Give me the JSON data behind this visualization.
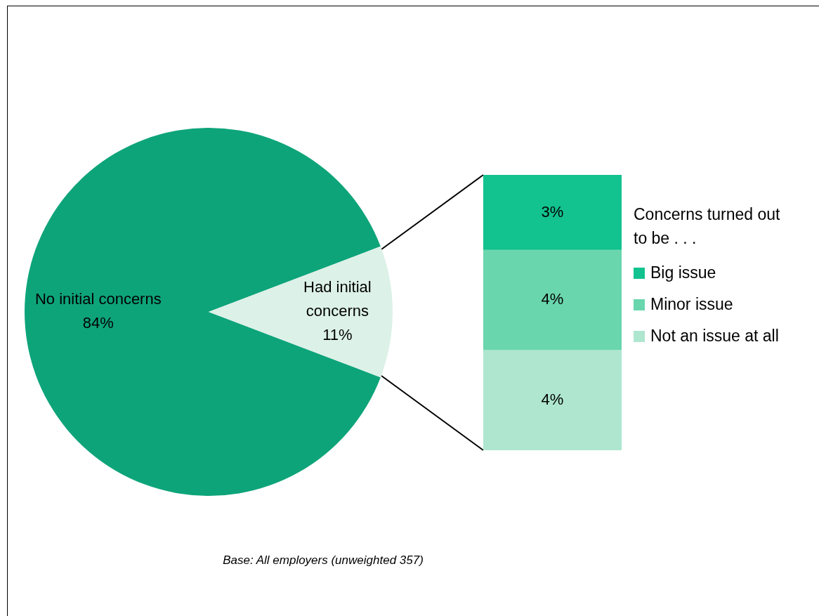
{
  "chart_data": [
    {
      "type": "pie",
      "categories": [
        "No initial concerns",
        "Had initial concerns"
      ],
      "values": [
        84,
        11
      ],
      "value_labels": [
        "84%",
        "11%"
      ],
      "colors": [
        "#0ea47a",
        "#dcf1e8"
      ],
      "legend": false,
      "annotations": [
        "Base: All employers (unweighted 357)"
      ]
    },
    {
      "type": "bar",
      "stacked": true,
      "categories": [
        null
      ],
      "legend": "right",
      "legend_title": "Concerns turned out to be . . .",
      "series": [
        {
          "name": "Not an issue at all",
          "color": "#aee6cf",
          "values": [
            4
          ],
          "value_labels": [
            "4%"
          ]
        },
        {
          "name": "Minor issue",
          "color": "#6ad6ae",
          "values": [
            4
          ],
          "value_labels": [
            "4%"
          ]
        },
        {
          "name": "Big issue",
          "color": "#12c28f",
          "values": [
            3
          ],
          "value_labels": [
            "3%"
          ]
        }
      ]
    }
  ]
}
